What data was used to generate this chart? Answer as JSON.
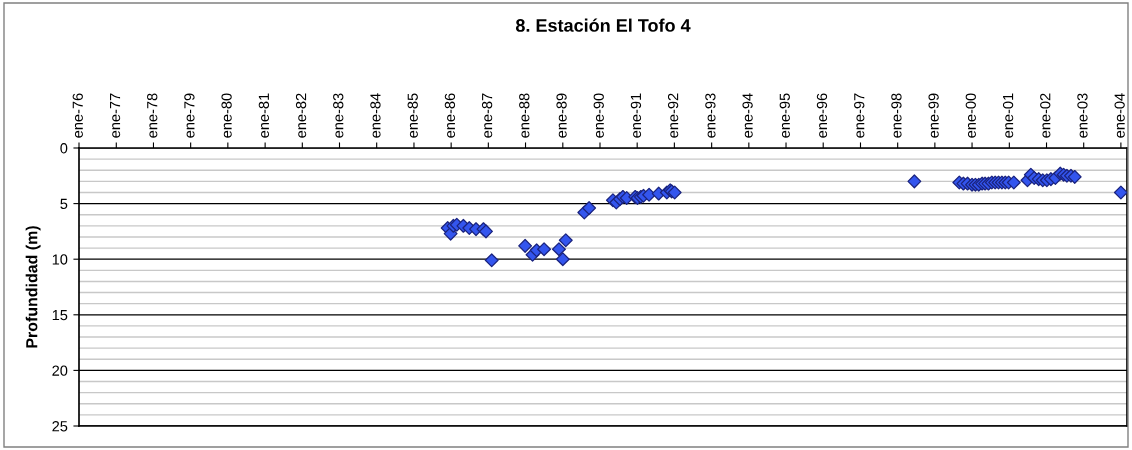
{
  "chart_data": {
    "type": "scatter",
    "title": "8. Estación El Tofo 4",
    "ylabel": "Profundidad (m)",
    "marker": "diamond",
    "grid": "y",
    "x": [
      "1985-11-28",
      "1985-12-27",
      "1986-01-23",
      "1986-02-25",
      "1986-05-01",
      "1986-06-28",
      "1986-09-02",
      "1986-11-14",
      "1986-12-09",
      "1987-02-03",
      "1987-12-28",
      "1988-03-10",
      "1988-04-19",
      "1988-07-01",
      "1988-11-24",
      "1989-01-01",
      "1989-01-30",
      "1989-07-31",
      "1989-09-16",
      "1990-05-08",
      "1990-06-10",
      "1990-07-16",
      "1990-08-14",
      "1990-09-20",
      "1990-12-13",
      "1991-01-04",
      "1991-02-06",
      "1991-03-04",
      "1991-04-28",
      "1991-07-31",
      "1991-10-19",
      "1991-11-21",
      "1991-12-06",
      "1992-01-04",
      "1998-06-14",
      "1999-08-29",
      "1999-10-08",
      "1999-11-18",
      "2000-01-01",
      "2000-02-03",
      "2000-03-07",
      "2000-04-09",
      "2000-05-08",
      "2000-06-10",
      "2000-07-13",
      "2000-08-15",
      "2000-09-17",
      "2000-10-20",
      "2000-11-22",
      "2000-12-25",
      "2001-02-14",
      "2001-06-28",
      "2001-07-31",
      "2001-09-02",
      "2001-10-16",
      "2001-11-25",
      "2002-01-04",
      "2002-02-13",
      "2002-03-29",
      "2002-05-16",
      "2002-06-18",
      "2002-07-20",
      "2002-08-29",
      "2002-10-05",
      "2004-01-01"
    ],
    "series": [
      {
        "color": "#3355ee",
        "values": [
          7.2,
          7.7,
          7.0,
          6.9,
          7.0,
          7.2,
          7.3,
          7.3,
          7.5,
          10.1,
          8.8,
          9.6,
          9.2,
          9.1,
          9.1,
          10.0,
          8.3,
          5.8,
          5.4,
          4.7,
          4.9,
          4.6,
          4.4,
          4.5,
          4.4,
          4.5,
          4.4,
          4.3,
          4.2,
          4.1,
          4.0,
          3.8,
          3.9,
          4.0,
          3.0,
          3.1,
          3.2,
          3.2,
          3.3,
          3.3,
          3.3,
          3.2,
          3.2,
          3.2,
          3.1,
          3.1,
          3.1,
          3.1,
          3.1,
          3.1,
          3.1,
          2.9,
          2.4,
          2.7,
          2.8,
          2.9,
          2.9,
          2.8,
          2.7,
          2.3,
          2.4,
          2.5,
          2.5,
          2.6,
          4.0
        ]
      }
    ],
    "xlim": [
      "1976-01-01",
      "2004-03-01"
    ],
    "xticks": [
      {
        "value": "1976-01-01",
        "label": "ene-76"
      },
      {
        "value": "1977-01-01",
        "label": "ene-77"
      },
      {
        "value": "1978-01-01",
        "label": "ene-78"
      },
      {
        "value": "1979-01-01",
        "label": "ene-79"
      },
      {
        "value": "1980-01-01",
        "label": "ene-80"
      },
      {
        "value": "1981-01-01",
        "label": "ene-81"
      },
      {
        "value": "1982-01-01",
        "label": "ene-82"
      },
      {
        "value": "1983-01-01",
        "label": "ene-83"
      },
      {
        "value": "1984-01-01",
        "label": "ene-84"
      },
      {
        "value": "1985-01-01",
        "label": "ene-85"
      },
      {
        "value": "1986-01-01",
        "label": "ene-86"
      },
      {
        "value": "1987-01-01",
        "label": "ene-87"
      },
      {
        "value": "1988-01-01",
        "label": "ene-88"
      },
      {
        "value": "1989-01-01",
        "label": "ene-89"
      },
      {
        "value": "1990-01-01",
        "label": "ene-90"
      },
      {
        "value": "1991-01-01",
        "label": "ene-91"
      },
      {
        "value": "1992-01-01",
        "label": "ene-92"
      },
      {
        "value": "1993-01-01",
        "label": "ene-93"
      },
      {
        "value": "1994-01-01",
        "label": "ene-94"
      },
      {
        "value": "1995-01-01",
        "label": "ene-95"
      },
      {
        "value": "1996-01-01",
        "label": "ene-96"
      },
      {
        "value": "1997-01-01",
        "label": "ene-97"
      },
      {
        "value": "1998-01-01",
        "label": "ene-98"
      },
      {
        "value": "1999-01-01",
        "label": "ene-99"
      },
      {
        "value": "2000-01-01",
        "label": "ene-00"
      },
      {
        "value": "2001-01-01",
        "label": "ene-01"
      },
      {
        "value": "2002-01-01",
        "label": "ene-02"
      },
      {
        "value": "2003-01-01",
        "label": "ene-03"
      },
      {
        "value": "2004-01-01",
        "label": "ene-04"
      }
    ],
    "ylim": [
      25,
      0
    ],
    "yticks": [
      0,
      {
        "value": 1,
        "label": null
      },
      {
        "value": 2,
        "label": null
      },
      {
        "value": 3,
        "label": null
      },
      {
        "value": 4,
        "label": null
      },
      5,
      {
        "value": 6,
        "label": null
      },
      {
        "value": 7,
        "label": null
      },
      {
        "value": 8,
        "label": null
      },
      {
        "value": 9,
        "label": null
      },
      10,
      {
        "value": 11,
        "label": null
      },
      {
        "value": 12,
        "label": null
      },
      {
        "value": 13,
        "label": null
      },
      {
        "value": 14,
        "label": null
      },
      15,
      {
        "value": 16,
        "label": null
      },
      {
        "value": 17,
        "label": null
      },
      {
        "value": 18,
        "label": null
      },
      {
        "value": 19,
        "label": null
      },
      20,
      {
        "value": 21,
        "label": null
      },
      {
        "value": 22,
        "label": null
      },
      {
        "value": 23,
        "label": null
      },
      {
        "value": 24,
        "label": null
      },
      25
    ]
  }
}
